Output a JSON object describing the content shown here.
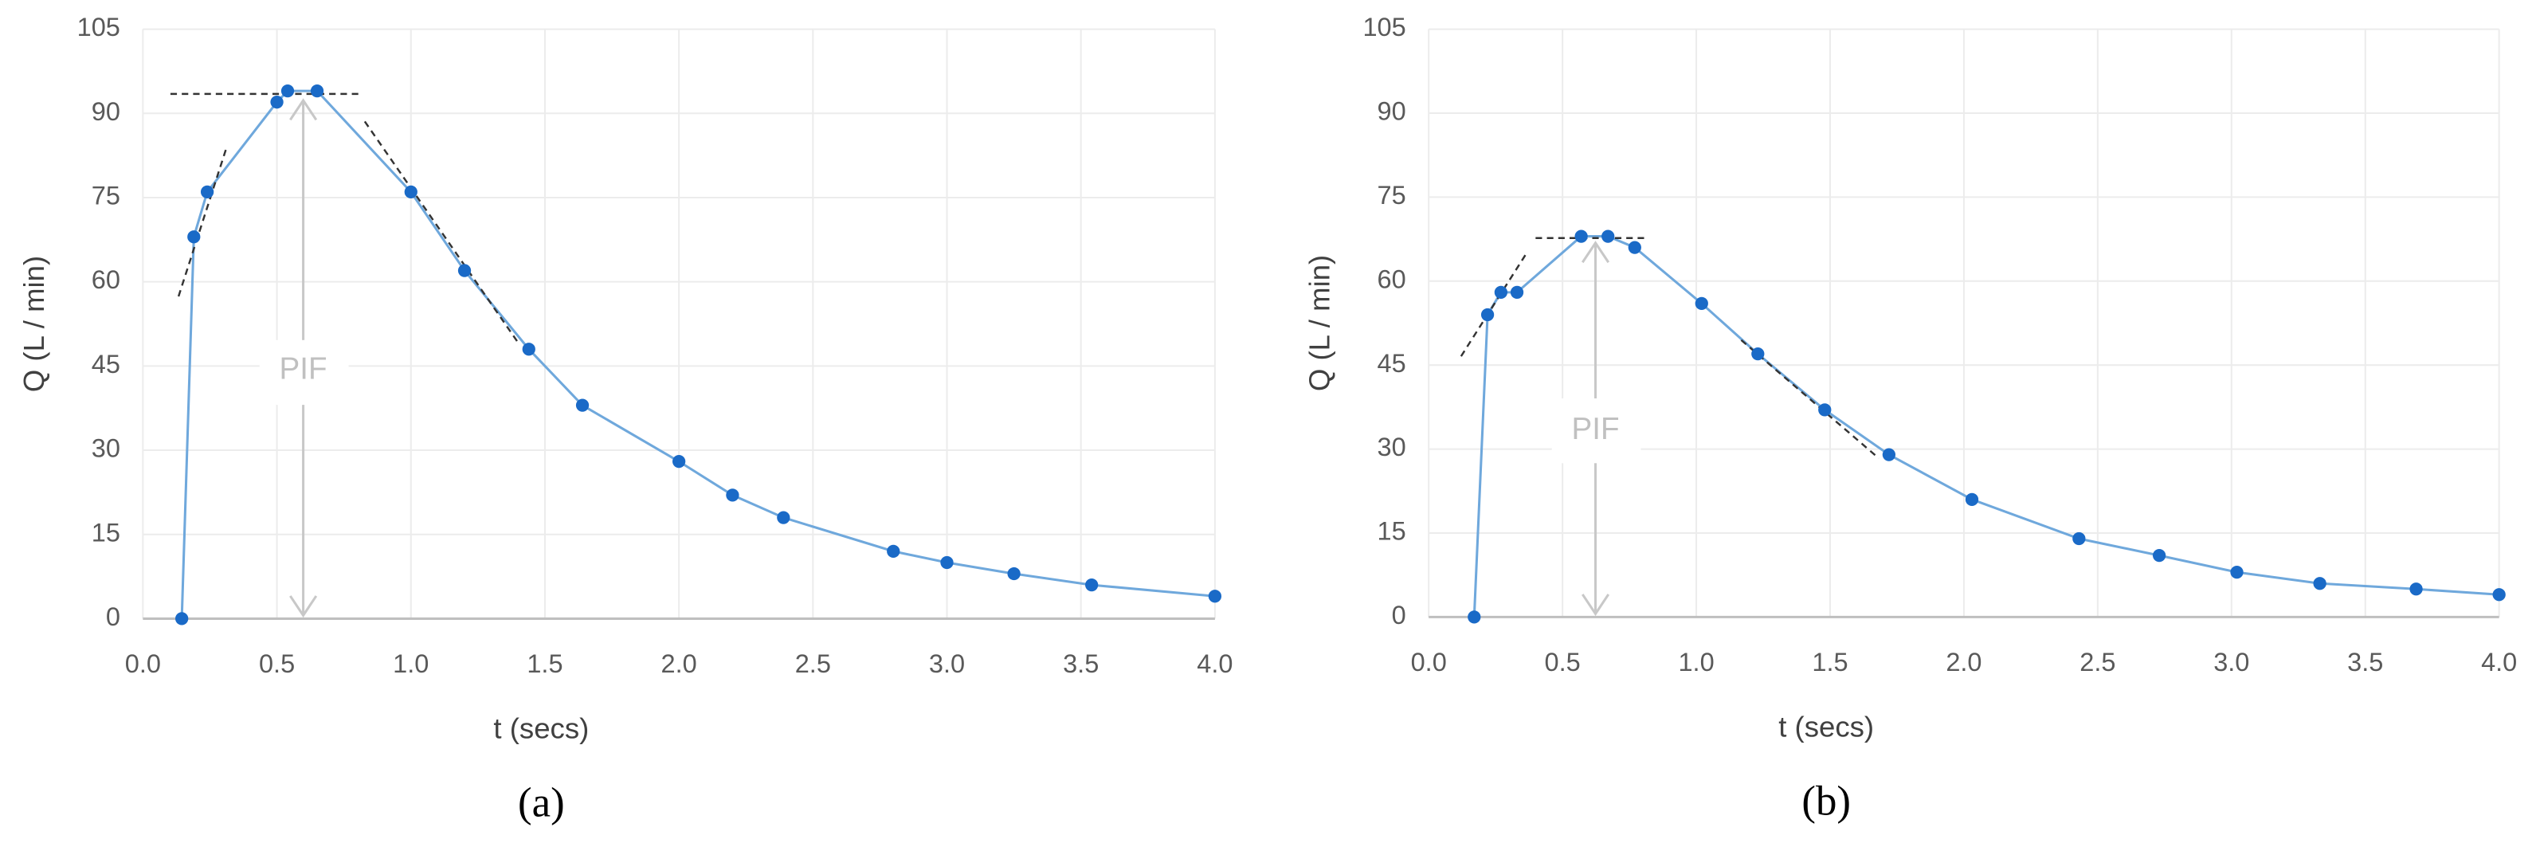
{
  "chart_data": [
    {
      "type": "line",
      "caption": "(a)",
      "annotation": "PIF",
      "xlabel": "t (secs)",
      "ylabel": "Q (L / min)",
      "x": [
        0.145,
        0.19,
        0.24,
        0.5,
        0.54,
        0.65,
        1.0,
        1.2,
        1.44,
        1.64,
        2.0,
        2.2,
        2.39,
        2.8,
        3.0,
        3.25,
        3.54,
        4.0
      ],
      "values": [
        0,
        68,
        76,
        92,
        94,
        94,
        76,
        62,
        48,
        38,
        28,
        22,
        18,
        12,
        10,
        8,
        6,
        4
      ],
      "color": "#6fa8dc",
      "marker_color": "#1a6ac7",
      "grid": true,
      "xlim": [
        0,
        4
      ],
      "ylim": [
        0,
        105
      ],
      "xticks": [
        {
          "value": 0,
          "label": "0.0"
        },
        0.5,
        {
          "value": 1,
          "label": "1.0"
        },
        1.5,
        {
          "value": 2,
          "label": "2.0"
        },
        2.5,
        {
          "value": 3,
          "label": "3.0"
        },
        3.5,
        {
          "value": 4,
          "label": "4.0"
        }
      ],
      "yticks": [
        0,
        15,
        30,
        45,
        60,
        75,
        90,
        105
      ]
    },
    {
      "type": "line",
      "caption": "(b)",
      "annotation": "PIF",
      "xlabel": "t (secs)",
      "ylabel": "Q (L / min)",
      "x": [
        0.17,
        0.22,
        0.27,
        0.33,
        0.57,
        0.67,
        0.77,
        1.02,
        1.23,
        1.48,
        1.72,
        2.03,
        2.43,
        2.73,
        3.02,
        3.33,
        3.69,
        4.0
      ],
      "values": [
        0,
        54,
        58,
        58,
        68,
        68,
        66,
        56,
        47,
        37,
        29,
        21,
        14,
        11,
        8,
        6,
        5,
        4
      ],
      "color": "#6fa8dc",
      "marker_color": "#1a6ac7",
      "grid": true,
      "xlim": [
        0,
        4
      ],
      "ylim": [
        0,
        105
      ],
      "xticks": [
        {
          "value": 0,
          "label": "0.0"
        },
        0.5,
        {
          "value": 1,
          "label": "1.0"
        },
        1.5,
        {
          "value": 2,
          "label": "2.0"
        },
        2.5,
        {
          "value": 3,
          "label": "3.0"
        },
        3.5,
        {
          "value": 4,
          "label": "4.0"
        }
      ],
      "yticks": [
        0,
        15,
        30,
        45,
        60,
        75,
        90,
        105
      ]
    }
  ]
}
